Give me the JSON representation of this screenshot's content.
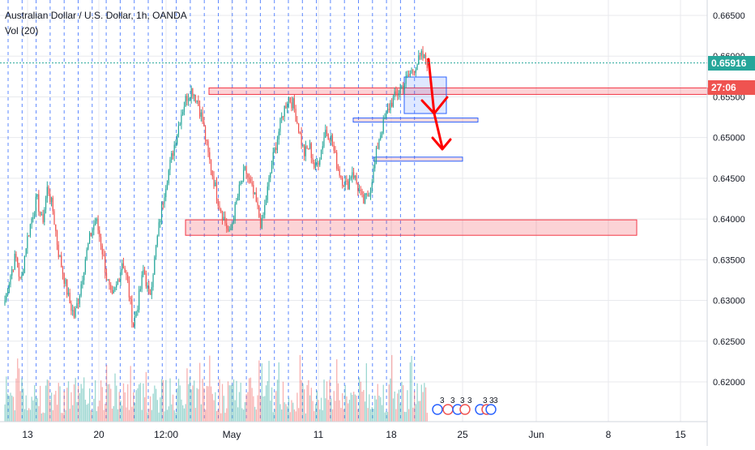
{
  "header": {
    "symbol_line": "Australian Dollar / U.S. Dollar, 1h, OANDA",
    "volume_label": "Vol (20)"
  },
  "price_axis": {
    "ticks": [
      "0.66500",
      "0.66000",
      "0.65500",
      "0.65000",
      "0.64500",
      "0.64000",
      "0.63500",
      "0.63000",
      "0.62500",
      "0.62000"
    ],
    "tick_values": [
      0.665,
      0.66,
      0.655,
      0.65,
      0.645,
      0.64,
      0.635,
      0.63,
      0.625,
      0.62
    ],
    "current_price": "0.65916",
    "current_price_value": 0.65916,
    "countdown": "27:06",
    "countdown_value": 0.6561,
    "last_price_color": "#26a69a",
    "countdown_color": "#ef5350"
  },
  "time_axis": {
    "labels": [
      "13",
      "20",
      "12:00",
      "May",
      "11",
      "18",
      "25",
      "Jun",
      "8",
      "15"
    ]
  },
  "event_markers": [
    "3",
    "3",
    "3",
    "3",
    "3",
    "3",
    "3"
  ],
  "colors": {
    "up": "#26a69a",
    "down": "#ef5350",
    "zone_fill": "rgba(242,54,69,0.22)",
    "zone_stroke": "#f23645",
    "blue_box_stroke": "#2962ff",
    "blue_box_fill": "rgba(41,98,255,0.15)",
    "grid": "#e8eaed",
    "dashed_line": "#2962ff",
    "arrow": "#ff0000"
  },
  "chart_data": {
    "type": "candlestick",
    "title": "Australian Dollar / U.S. Dollar, 1h, OANDA",
    "xlabel": "",
    "ylabel": "",
    "ylim": [
      0.6155,
      0.6675
    ],
    "x_ticks": [
      "13",
      "20",
      "12:00",
      "May",
      "11",
      "18",
      "25",
      "Jun",
      "8",
      "15"
    ],
    "close_path": [
      [
        0.63,
        0.633,
        0.6355,
        0.632,
        0.637,
        0.64,
        0.6425,
        0.6395,
        0.644,
        0.641
      ],
      [
        0.636,
        0.633,
        0.63,
        0.628,
        0.631,
        0.635,
        0.638,
        0.64,
        0.637,
        0.633
      ],
      [
        0.63,
        0.632,
        0.635,
        0.632,
        0.627,
        0.63,
        0.634,
        0.63,
        0.635,
        0.64
      ],
      [
        0.644,
        0.647,
        0.65,
        0.653,
        0.655,
        0.656,
        0.6545,
        0.652,
        0.648,
        0.645
      ],
      [
        0.642,
        0.64,
        0.638,
        0.641,
        0.644,
        0.646,
        0.644,
        0.642,
        0.639,
        0.643
      ],
      [
        0.647,
        0.65,
        0.653,
        0.655,
        0.654,
        0.651,
        0.648,
        0.649,
        0.646,
        0.648
      ],
      [
        0.651,
        0.65,
        0.647,
        0.645,
        0.644,
        0.646,
        0.644,
        0.642,
        0.643,
        0.646
      ],
      [
        0.65,
        0.652,
        0.654,
        0.655,
        0.656,
        0.657,
        0.658,
        0.659,
        0.66,
        0.6592
      ]
    ],
    "zones": [
      {
        "name": "upper-resistance-zone",
        "from_time": "Apr 27",
        "to_time": "beyond Jun 15",
        "price_low": 0.6553,
        "price_high": 0.6561
      },
      {
        "name": "lower-support-zone",
        "from_time": "Apr 22",
        "to_time": "Jun 10",
        "price_low": 0.638,
        "price_high": 0.6399
      },
      {
        "name": "small-box-1",
        "from_time": "May 14",
        "to_time": "May 26",
        "price_low": 0.652,
        "price_high": 0.6524
      },
      {
        "name": "small-box-2",
        "from_time": "May 16",
        "to_time": "May 23",
        "price_low": 0.6472,
        "price_high": 0.6476
      }
    ],
    "last_price": 0.65916
  }
}
